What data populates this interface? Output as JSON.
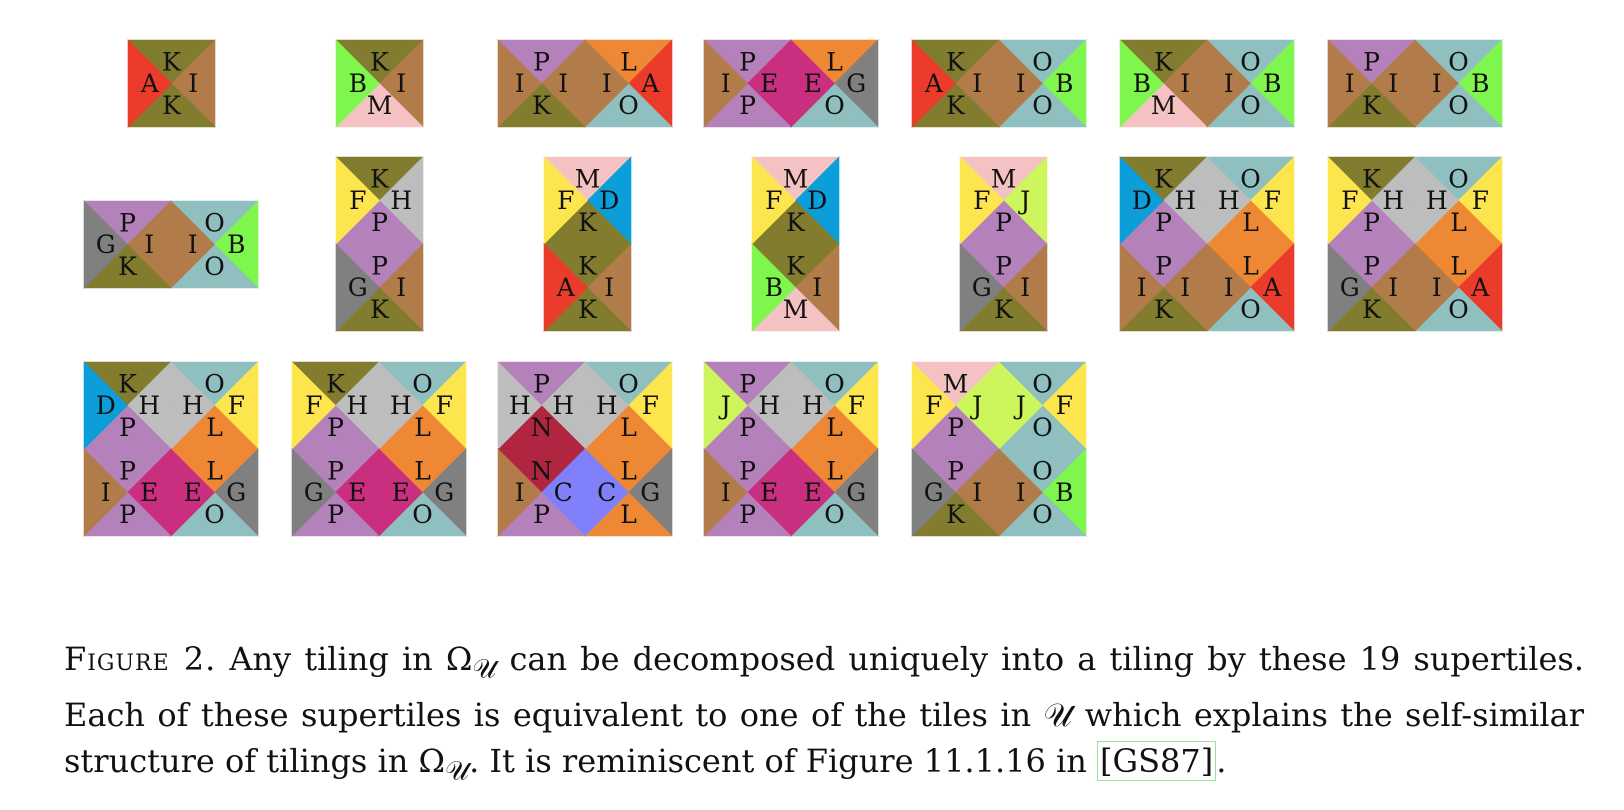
{
  "colors": {
    "K": "#827c2e",
    "I": "#b27c4a",
    "A": "#eb3b2b",
    "B": "#7ef64e",
    "M": "#f4c2c2",
    "P": "#b581bb",
    "L": "#ef8834",
    "O": "#8fbfbf",
    "E": "#c92f7e",
    "G": "#808080",
    "F": "#fde64d",
    "D": "#0b9ed8",
    "H": "#bdbdbd",
    "J": "#cdf55c",
    "N": "#b02540",
    "C": "#8080fb"
  },
  "figure": {
    "supertiles": [
      {
        "cells": [
          [
            "K",
            "I",
            "K",
            "A"
          ]
        ]
      },
      {
        "cells": [
          [
            "K",
            "I",
            "M",
            "B"
          ]
        ]
      },
      {
        "cells": [
          [
            "P",
            "I",
            "K",
            "I"
          ],
          [
            "L",
            "A",
            "O",
            "I"
          ]
        ]
      },
      {
        "cells": [
          [
            "P",
            "E",
            "P",
            "I"
          ],
          [
            "L",
            "G",
            "O",
            "E"
          ]
        ]
      },
      {
        "cells": [
          [
            "K",
            "I",
            "K",
            "A"
          ],
          [
            "O",
            "B",
            "O",
            "I"
          ]
        ]
      },
      {
        "cells": [
          [
            "K",
            "I",
            "M",
            "B"
          ],
          [
            "O",
            "B",
            "O",
            "I"
          ]
        ]
      },
      {
        "cells": [
          [
            "P",
            "I",
            "K",
            "I"
          ],
          [
            "O",
            "B",
            "O",
            "I"
          ]
        ]
      },
      {
        "cells": [
          [
            "P",
            "I",
            "K",
            "G"
          ],
          [
            "O",
            "B",
            "O",
            "I"
          ]
        ]
      },
      {
        "cells": [
          [
            "K",
            "H",
            "P",
            "F"
          ]
        ],
        "extra": [
          [
            "P",
            "I",
            "K",
            "G"
          ]
        ]
      },
      {
        "cells": [
          [
            "M",
            "D",
            "K",
            "F"
          ]
        ],
        "extra": [
          [
            "K",
            "I",
            "K",
            "A"
          ]
        ]
      },
      {
        "cells": [
          [
            "M",
            "D",
            "K",
            "F"
          ]
        ],
        "extra": [
          [
            "K",
            "I",
            "M",
            "B"
          ]
        ]
      },
      {
        "cells": [
          [
            "M",
            "J",
            "P",
            "F"
          ]
        ],
        "extra": [
          [
            "P",
            "I",
            "K",
            "G"
          ]
        ]
      },
      {
        "cells": [
          [
            "K",
            "H",
            "P",
            "D"
          ],
          [
            "O",
            "F",
            "L",
            "H"
          ]
        ],
        "extra": [
          [
            "P",
            "I",
            "K",
            "I"
          ],
          [
            "L",
            "A",
            "O",
            "I"
          ]
        ]
      },
      {
        "cells": [
          [
            "K",
            "H",
            "P",
            "F"
          ],
          [
            "O",
            "F",
            "L",
            "H"
          ]
        ],
        "extra": [
          [
            "P",
            "I",
            "K",
            "G"
          ],
          [
            "L",
            "A",
            "O",
            "I"
          ]
        ]
      },
      {
        "cells": [
          [
            "K",
            "H",
            "P",
            "D"
          ],
          [
            "O",
            "F",
            "L",
            "H"
          ]
        ],
        "extra": [
          [
            "P",
            "E",
            "P",
            "I"
          ],
          [
            "L",
            "G",
            "O",
            "E"
          ]
        ]
      },
      {
        "cells": [
          [
            "K",
            "H",
            "P",
            "F"
          ],
          [
            "O",
            "F",
            "L",
            "H"
          ]
        ],
        "extra": [
          [
            "P",
            "E",
            "P",
            "G"
          ],
          [
            "L",
            "G",
            "O",
            "E"
          ]
        ]
      },
      {
        "cells": [
          [
            "P",
            "H",
            "N",
            "H"
          ],
          [
            "O",
            "F",
            "L",
            "H"
          ]
        ],
        "extra": [
          [
            "N",
            "C",
            "P",
            "I"
          ],
          [
            "L",
            "G",
            "L",
            "C"
          ]
        ]
      },
      {
        "cells": [
          [
            "P",
            "H",
            "P",
            "J"
          ],
          [
            "O",
            "F",
            "L",
            "H"
          ]
        ],
        "extra": [
          [
            "P",
            "E",
            "P",
            "I"
          ],
          [
            "L",
            "G",
            "O",
            "E"
          ]
        ]
      },
      {
        "cells": [
          [
            "M",
            "J",
            "P",
            "F"
          ],
          [
            "O",
            "F",
            "O",
            "J"
          ]
        ],
        "extra": [
          [
            "P",
            "I",
            "K",
            "G"
          ],
          [
            "O",
            "B",
            "O",
            "I"
          ]
        ]
      }
    ]
  },
  "caption": {
    "label": "Figure 2.",
    "part1": " Any tiling in Ω",
    "sub1": "𝒰",
    "part2": " can be decomposed uniquely into a tiling by these 19 supertiles. Each of these supertiles is equivalent to one of the tiles in ",
    "script_u": "𝒰",
    "part3": " which explains the self-similar structure of tilings in Ω",
    "sub2": "𝒰",
    "part4": ". It is reminiscent of Figure 11.1.16 in ",
    "citation": "[GS87]",
    "part5": "."
  }
}
